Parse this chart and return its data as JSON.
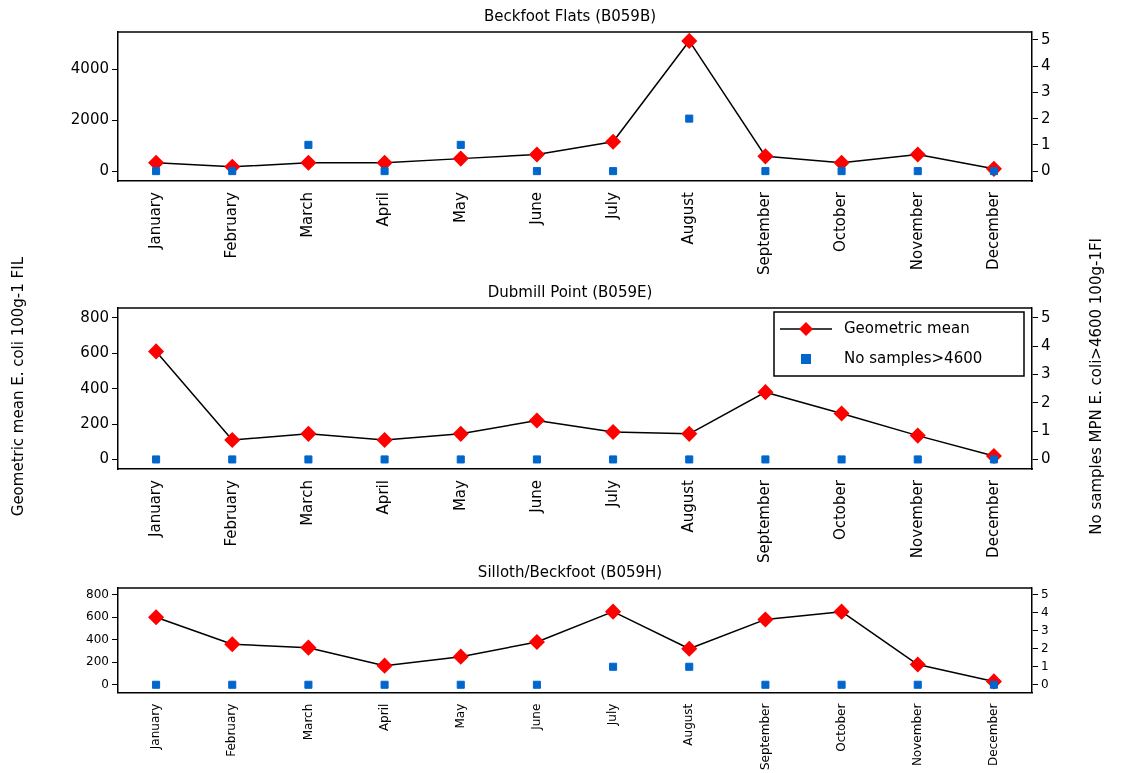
{
  "chart_data": [
    {
      "type": "line",
      "title": "Beckfoot Flats (B059B)",
      "categories": [
        "January",
        "February",
        "March",
        "April",
        "May",
        "June",
        "July",
        "August",
        "September",
        "October",
        "November",
        "December"
      ],
      "series": [
        {
          "type": "line",
          "color": "#ff0000",
          "marker": "diamond",
          "values": [
            330,
            170,
            330,
            330,
            490,
            650,
            1150,
            5100,
            580,
            330,
            650,
            90
          ]
        },
        {
          "type": "scatter",
          "axis": "y2",
          "color": "#0066cc",
          "marker": "square",
          "values": [
            0,
            0,
            1,
            0,
            1,
            0,
            0,
            2,
            0,
            0,
            0,
            0
          ]
        }
      ],
      "ylim": [
        -390,
        5450
      ],
      "yticks": [
        0,
        2000,
        4000
      ],
      "y2lim": [
        -0.38,
        5.3
      ],
      "y2ticks": [
        0,
        1,
        2,
        3,
        4,
        5
      ],
      "grid": false,
      "legend": false
    },
    {
      "type": "line",
      "title": "Dubmill Point (B059E)",
      "ylabel": "Geometric mean E. coli 100g-1 FIL",
      "y2label": "No samples MPN E. coli>4600 100g-1FI",
      "categories": [
        "January",
        "February",
        "March",
        "April",
        "May",
        "June",
        "July",
        "August",
        "September",
        "October",
        "November",
        "December"
      ],
      "series": [
        {
          "name": "Geometric mean",
          "type": "line",
          "color": "#ff0000",
          "marker": "diamond",
          "values": [
            610,
            110,
            145,
            110,
            145,
            220,
            155,
            145,
            380,
            260,
            135,
            20
          ]
        },
        {
          "name": "No samples>4600",
          "type": "scatter",
          "axis": "y2",
          "color": "#0066cc",
          "marker": "square",
          "values": [
            0,
            0,
            0,
            0,
            0,
            0,
            0,
            0,
            0,
            0,
            0,
            0
          ]
        }
      ],
      "ylim": [
        -54,
        855
      ],
      "yticks": [
        0,
        200,
        400,
        600,
        800
      ],
      "y2lim": [
        -0.34,
        5.34
      ],
      "y2ticks": [
        0,
        1,
        2,
        3,
        4,
        5
      ],
      "grid": false,
      "legend": "top right"
    },
    {
      "type": "line",
      "title": "Silloth/Beckfoot (B059H)",
      "categories": [
        "January",
        "February",
        "March",
        "April",
        "May",
        "June",
        "July",
        "August",
        "September",
        "October",
        "November",
        "December"
      ],
      "series": [
        {
          "type": "line",
          "color": "#ff0000",
          "marker": "diamond",
          "values": [
            600,
            360,
            330,
            170,
            250,
            380,
            650,
            320,
            580,
            650,
            180,
            30
          ]
        },
        {
          "type": "scatter",
          "axis": "y2",
          "color": "#0066cc",
          "marker": "square",
          "values": [
            0,
            0,
            0,
            0,
            0,
            0,
            1,
            1,
            0,
            0,
            0,
            0
          ]
        }
      ],
      "ylim": [
        -70,
        860
      ],
      "yticks": [
        0,
        200,
        400,
        600,
        800
      ],
      "y2lim": [
        -0.44,
        5.38
      ],
      "y2ticks": [
        0,
        1,
        2,
        3,
        4,
        5
      ],
      "grid": false,
      "legend": false
    }
  ]
}
